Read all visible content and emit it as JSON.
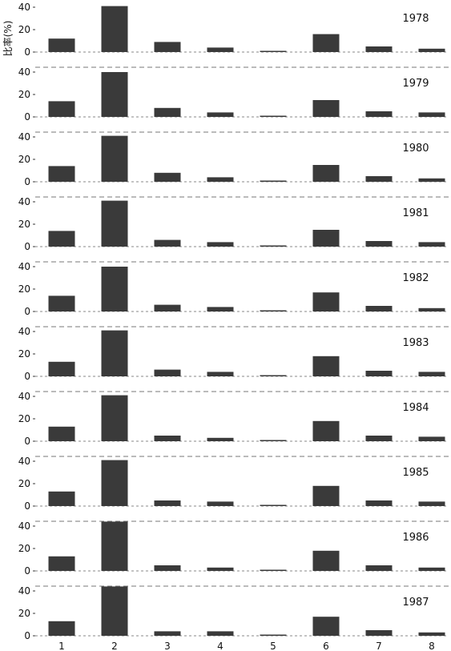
{
  "chart_data": {
    "type": "bar",
    "layout": "small-multiples",
    "ylabel": "比率(%)",
    "ylim": [
      0,
      40
    ],
    "yticks": [
      0,
      20,
      40
    ],
    "categories": [
      "1",
      "2",
      "3",
      "4",
      "5",
      "6",
      "7",
      "8"
    ],
    "bar_color": "#3a3a3a",
    "series": [
      {
        "name": "1978",
        "values": [
          12,
          41,
          9,
          4,
          1,
          16,
          5,
          3
        ]
      },
      {
        "name": "1979",
        "values": [
          14,
          40,
          8,
          4,
          1,
          15,
          5,
          4
        ]
      },
      {
        "name": "1980",
        "values": [
          14,
          41,
          8,
          4,
          1,
          15,
          5,
          3
        ]
      },
      {
        "name": "1981",
        "values": [
          14,
          41,
          6,
          4,
          1,
          15,
          5,
          4
        ]
      },
      {
        "name": "1982",
        "values": [
          14,
          40,
          6,
          4,
          1,
          17,
          5,
          3
        ]
      },
      {
        "name": "1983",
        "values": [
          13,
          41,
          6,
          4,
          1,
          18,
          5,
          4
        ]
      },
      {
        "name": "1984",
        "values": [
          13,
          41,
          5,
          3,
          1,
          18,
          5,
          4
        ]
      },
      {
        "name": "1985",
        "values": [
          13,
          41,
          5,
          4,
          1,
          18,
          5,
          4
        ]
      },
      {
        "name": "1986",
        "values": [
          13,
          44,
          5,
          3,
          1,
          18,
          5,
          3
        ]
      },
      {
        "name": "1987",
        "values": [
          13,
          44,
          4,
          4,
          1,
          17,
          5,
          3
        ]
      }
    ]
  }
}
